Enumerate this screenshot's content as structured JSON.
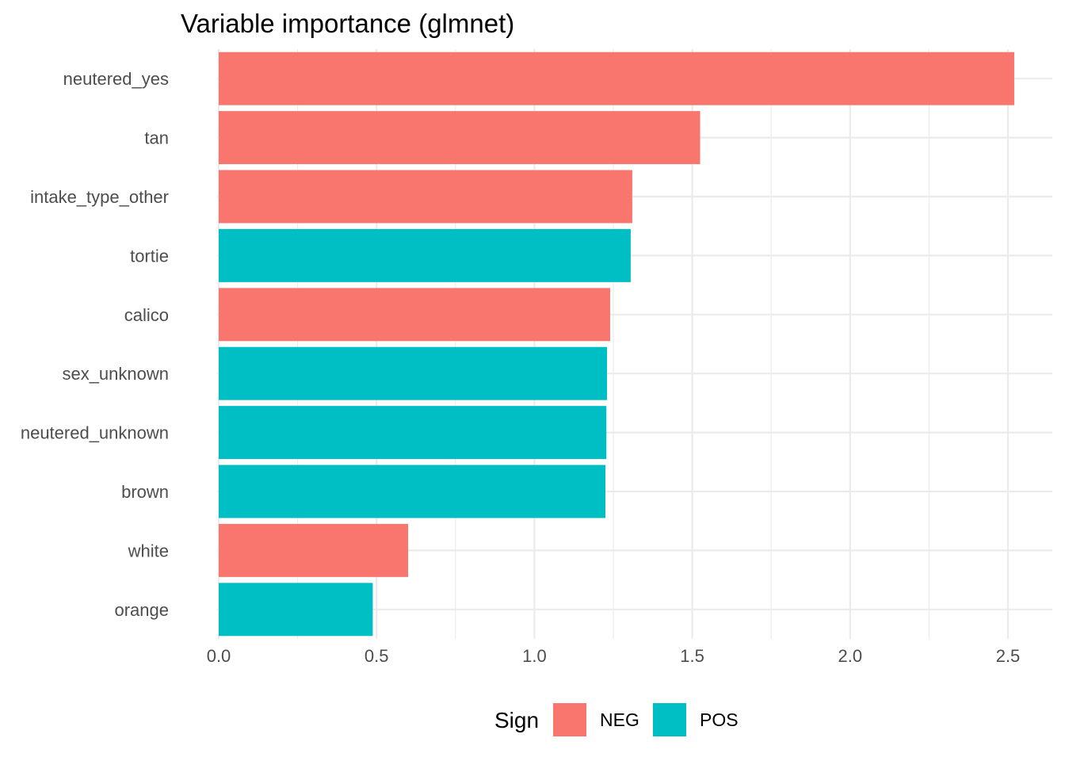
{
  "chart_data": {
    "type": "bar",
    "orientation": "horizontal",
    "title": "Variable importance (glmnet)",
    "xlabel": "",
    "ylabel": "",
    "xlim": [
      0,
      2.6
    ],
    "x_ticks": [
      0.0,
      0.5,
      1.0,
      1.5,
      2.0,
      2.5
    ],
    "x_tick_labels": [
      "0.0",
      "0.5",
      "1.0",
      "1.5",
      "2.0",
      "2.5"
    ],
    "categories": [
      "neutered_yes",
      "tan",
      "intake_type_other",
      "tortie",
      "calico",
      "sex_unknown",
      "neutered_unknown",
      "brown",
      "white",
      "orange"
    ],
    "values": [
      2.52,
      1.525,
      1.31,
      1.305,
      1.24,
      1.23,
      1.228,
      1.225,
      0.6,
      0.488
    ],
    "sign": [
      "NEG",
      "NEG",
      "NEG",
      "POS",
      "NEG",
      "POS",
      "POS",
      "POS",
      "NEG",
      "POS"
    ],
    "grid": true,
    "legend": {
      "title": "Sign",
      "position": "bottom",
      "entries": [
        {
          "name": "NEG",
          "color": "#F8766D"
        },
        {
          "name": "POS",
          "color": "#00BFC4"
        }
      ]
    }
  }
}
